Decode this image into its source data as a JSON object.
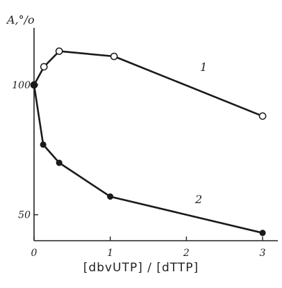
{
  "chart_data": {
    "type": "line",
    "ylabel": "A,°/o",
    "xlabel": "[dbvUTP] / [dTTP]",
    "xlim": [
      0,
      3.2
    ],
    "ylim": [
      40,
      122
    ],
    "x_ticks": [
      0,
      1,
      2,
      3
    ],
    "x_tick_labels": [
      "0",
      "1",
      "2",
      "3"
    ],
    "y_ticks": [
      50,
      100
    ],
    "y_tick_labels": [
      "50",
      "100"
    ],
    "grid": false,
    "legend": "none",
    "series": [
      {
        "name": "1",
        "marker": "open-circle",
        "color": "#1a1a1a",
        "x": [
          0,
          0.13,
          0.33,
          1.05,
          3.0
        ],
        "y": [
          100,
          107,
          113,
          111,
          88
        ]
      },
      {
        "name": "2",
        "marker": "filled-circle",
        "color": "#1a1a1a",
        "x": [
          0,
          0.12,
          0.33,
          1.0,
          3.0
        ],
        "y": [
          100,
          77,
          70,
          57,
          43
        ]
      }
    ]
  }
}
